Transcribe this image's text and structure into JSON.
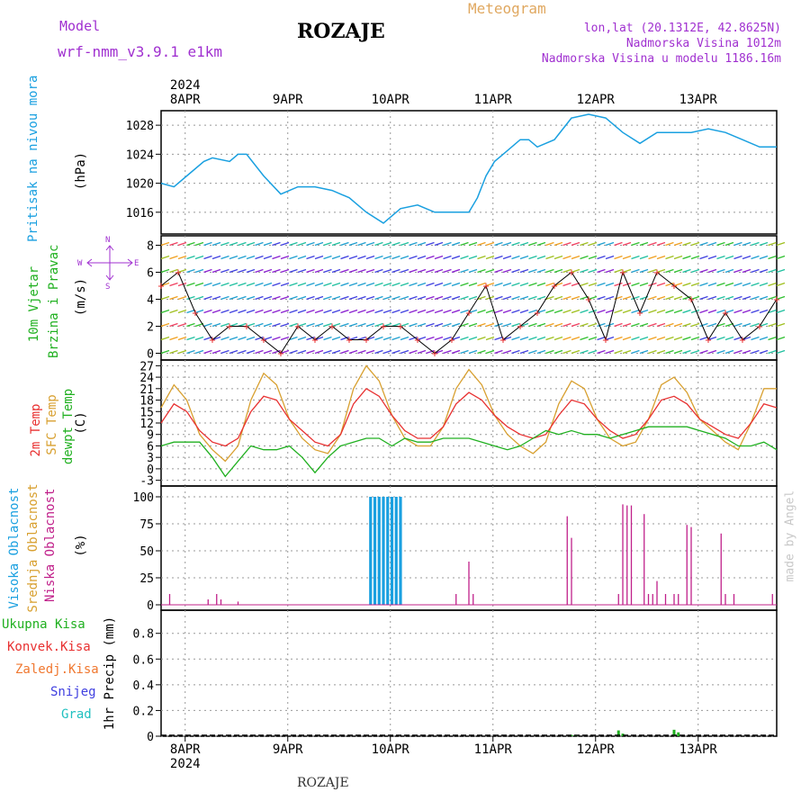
{
  "header": {
    "model_label": "Model",
    "model_name": "wrf-nmm_v3.9.1 e1km",
    "title": "ROZAJE",
    "meteogram": "Meteogram",
    "lonlat": "lon,lat (20.1312E, 42.8625N)",
    "elevation": "Nadmorska Visina 1012m",
    "elevation_model": "Nadmorska Visina u modelu 1186.16m",
    "footer_title": "ROZAJE",
    "watermark": "made by Angel"
  },
  "time_axis": {
    "year": "2024",
    "day_labels": [
      "8APR",
      "9APR",
      "10APR",
      "11APR",
      "12APR",
      "13APR"
    ],
    "start_hour_offset": 0,
    "total_hours": 144
  },
  "colors": {
    "pressure": "#1aa0e0",
    "temp2m": "#e83030",
    "sfc": "#d8a030",
    "dewpt": "#20b020",
    "high_cloud": "#1aa0e0",
    "low_cloud": "#c0208a",
    "precip": "#20b020",
    "wind_legend": "#a030d0"
  },
  "panels": {
    "pressure": {
      "label": "Pritisak na nivou mora",
      "unit": "(hPa)",
      "yticks": [
        "1016",
        "1020",
        "1024",
        "1028"
      ],
      "ylim": [
        1013,
        1030
      ]
    },
    "wind": {
      "label_line1": "10m Vjetar",
      "label_line2": "Brzina i Pravac",
      "unit": "(m/s)",
      "yticks": [
        "0",
        "2",
        "4",
        "6",
        "8"
      ],
      "ylim": [
        -0.5,
        8.7
      ],
      "compass_n": "N",
      "compass_s": "S",
      "compass_e": "E",
      "compass_w": "W"
    },
    "temp": {
      "label1": "2m Temp",
      "label2": "SFC Temp",
      "label3": "dewpt Temp",
      "unit": "(C)",
      "yticks": [
        "-3",
        "0",
        "3",
        "6",
        "9",
        "12",
        "15",
        "18",
        "21",
        "24",
        "27"
      ],
      "ylim": [
        -4.5,
        28.5
      ]
    },
    "cloud": {
      "label1": "Visoka Oblacnost",
      "label2": "Srednja Oblacnost",
      "label3": "Niska Oblacnost",
      "unit": "(%)",
      "yticks": [
        "0",
        "25",
        "50",
        "75",
        "100"
      ],
      "ylim": [
        -5,
        110
      ]
    },
    "precip": {
      "label1": "Ukupna Kisa",
      "label2": "Konvek.Kisa",
      "label3": "Zaledj.Kisa",
      "label4": "Snijeg",
      "label5": "Grad",
      "unit": "1hr Precip (mm)",
      "yticks": [
        "0",
        "0.2",
        "0.4",
        "0.6",
        "0.8"
      ],
      "ylim": [
        0,
        0.98
      ]
    }
  },
  "chart_data": {
    "type": "line",
    "x_unit": "hours from 7 Apr 2024 19:00",
    "pressure_hPa": {
      "x": [
        0,
        3,
        6,
        10,
        12,
        16,
        18,
        20,
        24,
        28,
        32,
        36,
        40,
        44,
        48,
        52,
        56,
        60,
        62,
        64,
        66,
        68,
        70,
        72,
        74,
        76,
        78,
        80,
        84,
        86,
        88,
        92,
        96,
        100,
        104,
        108,
        112,
        116,
        120,
        124,
        128,
        132,
        136,
        140,
        142,
        144
      ],
      "values": [
        1020,
        1019.5,
        1021,
        1023,
        1023.5,
        1023,
        1024,
        1024,
        1021,
        1018.5,
        1019.5,
        1019.5,
        1019,
        1018,
        1016,
        1014.5,
        1016.5,
        1017,
        1016.5,
        1016,
        1016,
        1016,
        1016,
        1016,
        1018,
        1021,
        1023,
        1024,
        1026,
        1026,
        1025,
        1026,
        1029,
        1029.5,
        1029,
        1027,
        1025.5,
        1027,
        1027,
        1027,
        1027.5,
        1027,
        1026,
        1025,
        1025,
        1025
      ]
    },
    "temp_2m_C": {
      "x": [
        0,
        3,
        6,
        9,
        12,
        15,
        18,
        21,
        24,
        27,
        30,
        33,
        36,
        39,
        42,
        45,
        48,
        51,
        54,
        57,
        60,
        63,
        66,
        69,
        72,
        75,
        78,
        81,
        84,
        87,
        90,
        93,
        96,
        99,
        102,
        105,
        108,
        111,
        114,
        117,
        120,
        123,
        126,
        129,
        132,
        135,
        138,
        141,
        144
      ],
      "values": [
        12,
        17,
        15,
        10,
        7,
        6,
        8,
        15,
        19,
        18,
        13,
        10,
        7,
        6,
        9,
        17,
        21,
        19,
        14,
        10,
        8,
        8,
        11,
        17,
        20,
        18,
        14,
        11,
        9,
        8,
        9,
        14,
        18,
        17,
        13,
        10,
        8,
        9,
        13,
        18,
        19,
        17,
        13,
        11,
        9,
        8,
        12,
        17,
        16
      ]
    },
    "temp_sfc_C": {
      "x": [
        0,
        3,
        6,
        9,
        12,
        15,
        18,
        21,
        24,
        27,
        30,
        33,
        36,
        39,
        42,
        45,
        48,
        51,
        54,
        57,
        60,
        63,
        66,
        69,
        72,
        75,
        78,
        81,
        84,
        87,
        90,
        93,
        96,
        99,
        102,
        105,
        108,
        111,
        114,
        117,
        120,
        123,
        126,
        129,
        132,
        135,
        138,
        141,
        144
      ],
      "values": [
        16,
        22,
        18,
        9,
        5,
        2,
        6,
        18,
        25,
        22,
        13,
        8,
        5,
        4,
        9,
        21,
        27,
        23,
        14,
        8,
        6,
        6,
        11,
        21,
        26,
        22,
        14,
        9,
        6,
        4,
        7,
        17,
        23,
        21,
        13,
        8,
        6,
        7,
        13,
        22,
        24,
        20,
        13,
        10,
        7,
        5,
        12,
        21,
        21
      ]
    },
    "dewpoint_C": {
      "x": [
        0,
        3,
        6,
        9,
        12,
        15,
        18,
        21,
        24,
        27,
        30,
        33,
        36,
        39,
        42,
        45,
        48,
        51,
        54,
        57,
        60,
        63,
        66,
        69,
        72,
        75,
        78,
        81,
        84,
        87,
        90,
        93,
        96,
        99,
        102,
        105,
        108,
        111,
        114,
        117,
        120,
        123,
        126,
        129,
        132,
        135,
        138,
        141,
        144
      ],
      "values": [
        6,
        7,
        7,
        7,
        3,
        -2,
        2,
        6,
        5,
        5,
        6,
        3,
        -1,
        3,
        6,
        7,
        8,
        8,
        6,
        8,
        7,
        7,
        8,
        8,
        8,
        7,
        6,
        5,
        6,
        8,
        10,
        9,
        10,
        9,
        9,
        8,
        9,
        10,
        11,
        11,
        11,
        11,
        10,
        9,
        8,
        6,
        6,
        7,
        5
      ]
    },
    "wind_speed_ms": {
      "x": [
        0,
        4,
        8,
        12,
        16,
        20,
        24,
        28,
        32,
        36,
        40,
        44,
        48,
        52,
        56,
        60,
        64,
        68,
        72,
        76,
        80,
        84,
        88,
        92,
        96,
        100,
        104,
        108,
        112,
        116,
        120,
        124,
        128,
        132,
        136,
        140,
        144
      ],
      "values": [
        5,
        6,
        3,
        1,
        2,
        2,
        1,
        0,
        2,
        1,
        2,
        1,
        1,
        2,
        2,
        1,
        0,
        1,
        3,
        5,
        1,
        2,
        3,
        5,
        6,
        4,
        1,
        6,
        3,
        6,
        5,
        4,
        1,
        3,
        1,
        2,
        4
      ]
    },
    "high_cloud_pct": {
      "x": [
        49,
        50,
        51,
        52,
        53,
        54,
        55,
        56
      ],
      "values": [
        100,
        100,
        100,
        100,
        100,
        100,
        100,
        100
      ]
    },
    "low_cloud_pct": {
      "x": [
        2,
        11,
        13,
        14,
        18,
        69,
        72,
        73,
        95,
        96,
        107,
        108,
        109,
        110,
        113,
        114,
        115,
        116,
        118,
        120,
        121,
        123,
        124,
        131,
        132,
        134,
        143
      ],
      "values": [
        10,
        5,
        10,
        5,
        3,
        10,
        40,
        10,
        82,
        62,
        10,
        93,
        92,
        92,
        84,
        10,
        10,
        22,
        10,
        10,
        10,
        74,
        72,
        66,
        10,
        10,
        10
      ]
    },
    "precip_mm": {
      "x": [
        96,
        97,
        107,
        108,
        120,
        121
      ],
      "values": [
        0.01,
        0.01,
        0.045,
        0.02,
        0.05,
        0.03
      ]
    }
  }
}
